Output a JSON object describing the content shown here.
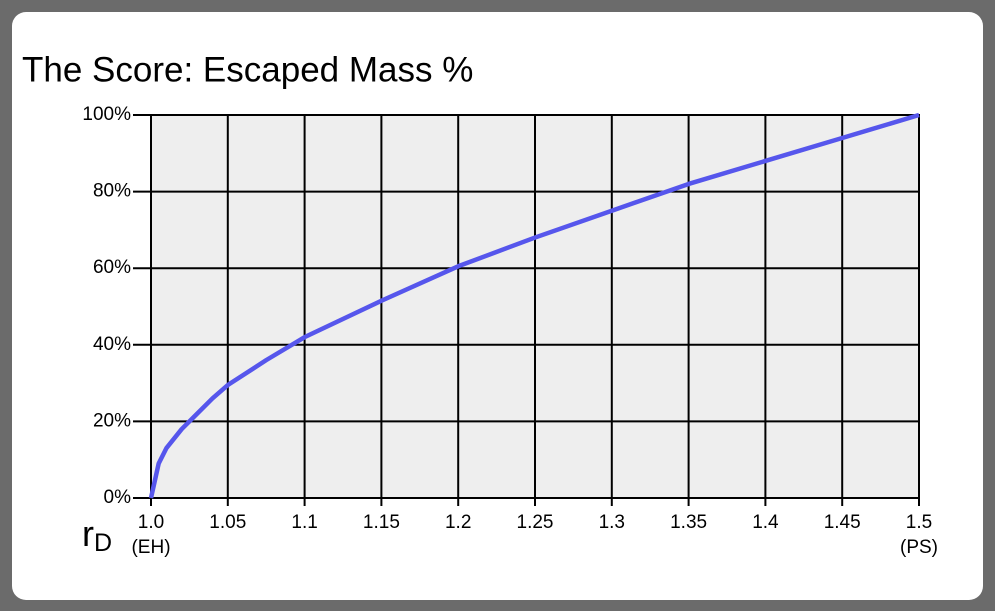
{
  "chart_data": {
    "type": "line",
    "title": "The Score: Escaped Mass %",
    "xlabel": "r",
    "xlabel_sub": "D",
    "x": [
      1.0,
      1.005,
      1.01,
      1.02,
      1.03,
      1.04,
      1.05,
      1.075,
      1.1,
      1.15,
      1.2,
      1.25,
      1.3,
      1.35,
      1.4,
      1.45,
      1.5
    ],
    "values": [
      0,
      9,
      13,
      18,
      22,
      26,
      29.5,
      36,
      42,
      51.5,
      60.5,
      68,
      75,
      82,
      88,
      94,
      100
    ],
    "color": "#5656ec",
    "xlim": [
      1.0,
      1.5
    ],
    "xticks": [
      {
        "value": 1.0,
        "label": "1.0"
      },
      1.05,
      1.1,
      1.15,
      1.2,
      1.25,
      1.3,
      1.35,
      1.4,
      1.45,
      1.5
    ],
    "ylim": [
      0,
      100
    ],
    "yticks": [
      {
        "value": 0,
        "label": "0%"
      },
      {
        "value": 20,
        "label": "20%"
      },
      {
        "value": 40,
        "label": "40%"
      },
      {
        "value": 60,
        "label": "60%"
      },
      {
        "value": 80,
        "label": "80%"
      },
      {
        "value": 100,
        "label": "100%"
      }
    ],
    "grid": true,
    "annotations": [
      {
        "x": 1.0,
        "text": "(EH)"
      },
      {
        "x": 1.5,
        "text": "(PS)"
      }
    ]
  }
}
